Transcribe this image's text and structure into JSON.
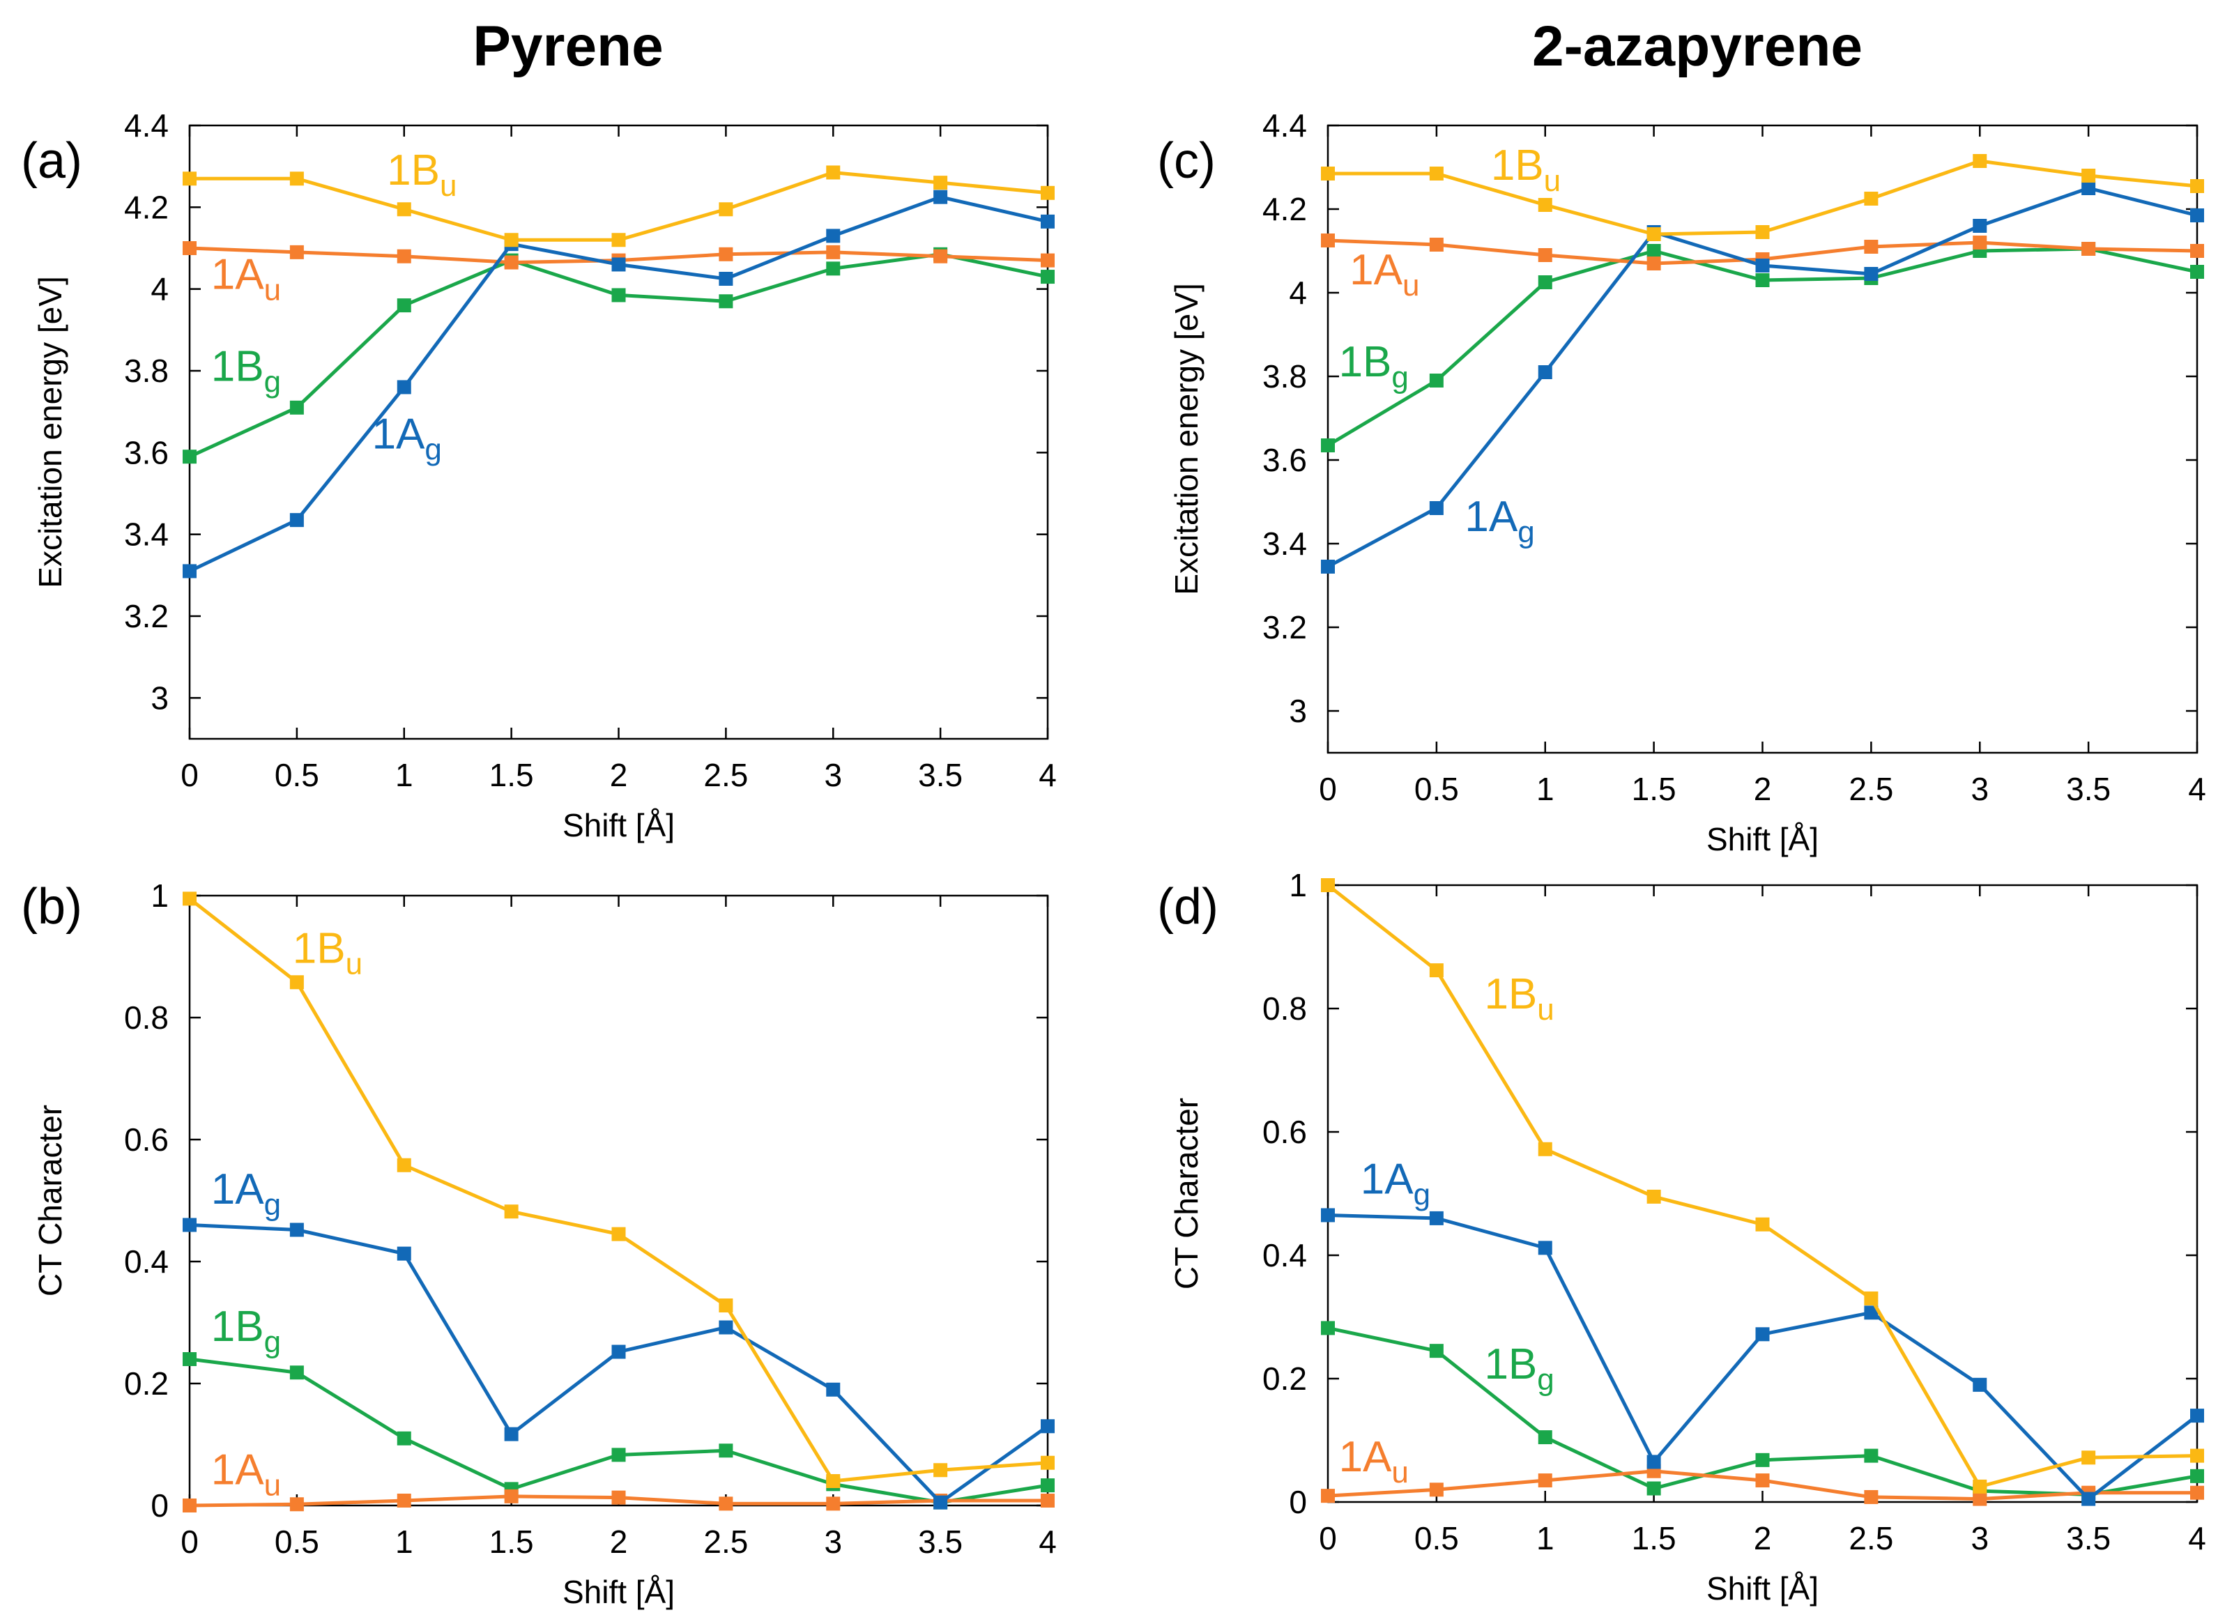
{
  "figure": {
    "titles": [
      "Pyrene",
      "2-azapyrene"
    ],
    "colors": {
      "1Ag": "#1269B7",
      "1Au": "#F57E2E",
      "1Bg": "#1AA74A",
      "1Bu": "#FBB813"
    }
  },
  "chart_data": [
    {
      "id": "a",
      "panel_label": "(a)",
      "column_title": "Pyrene",
      "type": "line",
      "xlabel": "Shift [Å]",
      "ylabel": "Excitation energy [eV]",
      "x": [
        0,
        0.5,
        1,
        1.5,
        2,
        2.5,
        3,
        3.5,
        4
      ],
      "xticks": [
        "0",
        "0.5",
        "1",
        "1.5",
        "2",
        "2.5",
        "3",
        "3.5",
        "4"
      ],
      "xlim": [
        0,
        4
      ],
      "ylim": [
        2.9,
        4.4
      ],
      "yticks": [
        "3",
        "3.2",
        "3.4",
        "3.6",
        "3.8",
        "4",
        "4.2",
        "4.4"
      ],
      "series": [
        {
          "name": "1Au",
          "label_main": "1A",
          "label_sub": "u",
          "values": [
            4.1,
            4.09,
            4.08,
            4.065,
            4.07,
            4.085,
            4.09,
            4.08,
            4.07
          ]
        },
        {
          "name": "1Bg",
          "label_main": "1B",
          "label_sub": "g",
          "values": [
            3.59,
            3.71,
            3.96,
            4.07,
            3.985,
            3.97,
            4.05,
            4.085,
            4.03
          ]
        },
        {
          "name": "1Ag",
          "label_main": "1A",
          "label_sub": "g",
          "values": [
            3.31,
            3.435,
            3.76,
            4.11,
            4.06,
            4.025,
            4.13,
            4.225,
            4.165
          ]
        },
        {
          "name": "1Bu",
          "label_main": "1B",
          "label_sub": "u",
          "values": [
            4.27,
            4.27,
            4.195,
            4.12,
            4.12,
            4.195,
            4.285,
            4.26,
            4.235
          ]
        }
      ],
      "annotations": [
        {
          "series": "1Bu",
          "x": 0.92,
          "y": 4.255
        },
        {
          "series": "1Au",
          "x": 0.1,
          "y": 4.0
        },
        {
          "series": "1Bg",
          "x": 0.1,
          "y": 3.775
        },
        {
          "series": "1Ag",
          "x": 0.85,
          "y": 3.61
        }
      ]
    },
    {
      "id": "b",
      "panel_label": "(b)",
      "column_title": "Pyrene",
      "type": "line",
      "xlabel": "Shift [Å]",
      "ylabel": "CT Character",
      "x": [
        0,
        0.5,
        1,
        1.5,
        2,
        2.5,
        3,
        3.5,
        4
      ],
      "xticks": [
        "0",
        "0.5",
        "1",
        "1.5",
        "2",
        "2.5",
        "3",
        "3.5",
        "4"
      ],
      "xlim": [
        0,
        4
      ],
      "ylim": [
        0,
        1
      ],
      "yticks": [
        "0",
        "0.2",
        "0.4",
        "0.6",
        "0.8",
        "1"
      ],
      "series": [
        {
          "name": "1Au",
          "label_main": "1A",
          "label_sub": "u",
          "values": [
            0.0,
            0.002,
            0.008,
            0.015,
            0.013,
            0.003,
            0.003,
            0.008,
            0.008
          ]
        },
        {
          "name": "1Bg",
          "label_main": "1B",
          "label_sub": "g",
          "values": [
            0.24,
            0.218,
            0.11,
            0.027,
            0.083,
            0.09,
            0.035,
            0.005,
            0.033
          ]
        },
        {
          "name": "1Ag",
          "label_main": "1A",
          "label_sub": "g",
          "values": [
            0.46,
            0.452,
            0.413,
            0.117,
            0.252,
            0.292,
            0.19,
            0.005,
            0.13
          ]
        },
        {
          "name": "1Bu",
          "label_main": "1B",
          "label_sub": "u",
          "values": [
            0.995,
            0.858,
            0.558,
            0.482,
            0.445,
            0.328,
            0.04,
            0.058,
            0.07
          ]
        }
      ],
      "annotations": [
        {
          "series": "1Bu",
          "x": 0.48,
          "y": 0.89
        },
        {
          "series": "1Ag",
          "x": 0.1,
          "y": 0.495
        },
        {
          "series": "1Bg",
          "x": 0.1,
          "y": 0.27
        },
        {
          "series": "1Au",
          "x": 0.1,
          "y": 0.035
        }
      ]
    },
    {
      "id": "c",
      "panel_label": "(c)",
      "column_title": "2-azapyrene",
      "type": "line",
      "xlabel": "Shift [Å]",
      "ylabel": "Excitation energy [eV]",
      "x": [
        0,
        0.5,
        1,
        1.5,
        2,
        2.5,
        3,
        3.5,
        4
      ],
      "xticks": [
        "0",
        "0.5",
        "1",
        "1.5",
        "2",
        "2.5",
        "3",
        "3.5",
        "4"
      ],
      "xlim": [
        0,
        4
      ],
      "ylim": [
        2.9,
        4.4
      ],
      "yticks": [
        "3",
        "3.2",
        "3.4",
        "3.6",
        "3.8",
        "4",
        "4.2",
        "4.4"
      ],
      "series": [
        {
          "name": "1Au",
          "label_main": "1A",
          "label_sub": "u",
          "values": [
            4.125,
            4.115,
            4.09,
            4.07,
            4.08,
            4.11,
            4.12,
            4.105,
            4.1
          ]
        },
        {
          "name": "1Bg",
          "label_main": "1B",
          "label_sub": "g",
          "values": [
            3.635,
            3.79,
            4.025,
            4.1,
            4.03,
            4.035,
            4.1,
            4.105,
            4.05
          ]
        },
        {
          "name": "1Ag",
          "label_main": "1A",
          "label_sub": "g",
          "values": [
            3.345,
            3.485,
            3.81,
            4.145,
            4.065,
            4.045,
            4.16,
            4.25,
            4.185
          ]
        },
        {
          "name": "1Bu",
          "label_main": "1B",
          "label_sub": "u",
          "values": [
            4.285,
            4.285,
            4.21,
            4.14,
            4.145,
            4.225,
            4.315,
            4.28,
            4.255
          ]
        }
      ],
      "annotations": [
        {
          "series": "1Bu",
          "x": 0.75,
          "y": 4.27
        },
        {
          "series": "1Au",
          "x": 0.1,
          "y": 4.02
        },
        {
          "series": "1Bg",
          "x": 0.05,
          "y": 3.8
        },
        {
          "series": "1Ag",
          "x": 0.63,
          "y": 3.43
        }
      ]
    },
    {
      "id": "d",
      "panel_label": "(d)",
      "column_title": "2-azapyrene",
      "type": "line",
      "xlabel": "Shift [Å]",
      "ylabel": "CT Character",
      "x": [
        0,
        0.5,
        1,
        1.5,
        2,
        2.5,
        3,
        3.5,
        4
      ],
      "xticks": [
        "0",
        "0.5",
        "1",
        "1.5",
        "2",
        "2.5",
        "3",
        "3.5",
        "4"
      ],
      "xlim": [
        0,
        4
      ],
      "ylim": [
        0,
        1
      ],
      "yticks": [
        "0",
        "0.2",
        "0.4",
        "0.6",
        "0.8",
        "1"
      ],
      "series": [
        {
          "name": "1Au",
          "label_main": "1A",
          "label_sub": "u",
          "values": [
            0.01,
            0.02,
            0.035,
            0.05,
            0.035,
            0.008,
            0.005,
            0.015,
            0.015
          ]
        },
        {
          "name": "1Bg",
          "label_main": "1B",
          "label_sub": "g",
          "values": [
            0.282,
            0.245,
            0.105,
            0.022,
            0.068,
            0.075,
            0.018,
            0.012,
            0.042
          ]
        },
        {
          "name": "1Ag",
          "label_main": "1A",
          "label_sub": "g",
          "values": [
            0.465,
            0.46,
            0.412,
            0.065,
            0.272,
            0.307,
            0.19,
            0.005,
            0.14
          ]
        },
        {
          "name": "1Bu",
          "label_main": "1B",
          "label_sub": "u",
          "values": [
            1.0,
            0.862,
            0.572,
            0.495,
            0.45,
            0.33,
            0.025,
            0.072,
            0.075
          ]
        }
      ],
      "annotations": [
        {
          "series": "1Bu",
          "x": 0.72,
          "y": 0.8
        },
        {
          "series": "1Ag",
          "x": 0.15,
          "y": 0.5
        },
        {
          "series": "1Bg",
          "x": 0.72,
          "y": 0.2
        },
        {
          "series": "1Au",
          "x": 0.05,
          "y": 0.05
        }
      ]
    }
  ]
}
